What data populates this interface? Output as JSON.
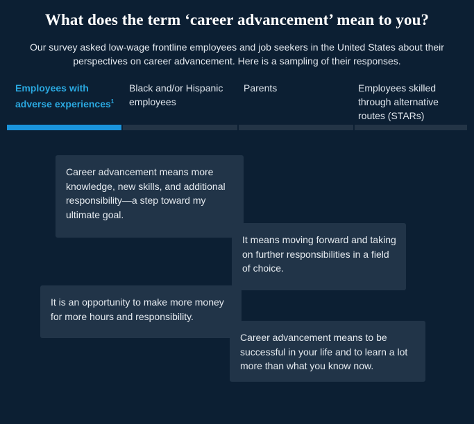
{
  "header": {
    "title": "What does the term ‘career advancement’ mean to you?",
    "subtitle": "Our survey asked low-wage frontline employees and job seekers in the United States about their perspectives on career advancement. Here is a sampling of their responses."
  },
  "tabs": [
    {
      "label": "Employees with adverse experiences",
      "footnote": "1",
      "active": true
    },
    {
      "label": "Black and/or Hispanic employees",
      "active": false
    },
    {
      "label": "Parents",
      "active": false
    },
    {
      "label": "Employees skilled through alternative routes (STARs)",
      "active": false
    }
  ],
  "quotes": [
    "Career advancement means more knowledge, new skills, and additional responsibility—a step toward my ultimate goal.",
    "It means moving forward and taking on further responsibilities in a field of choice.",
    "It is an opportunity to make more money for more hours and responsibility.",
    "Career advancement means to be successful in your life and to learn a lot more than what you know now."
  ],
  "colors": {
    "background": "#0c1f33",
    "active_tab": "#2aa8e0",
    "active_bar": "#1a94dc",
    "card": "#213448"
  }
}
